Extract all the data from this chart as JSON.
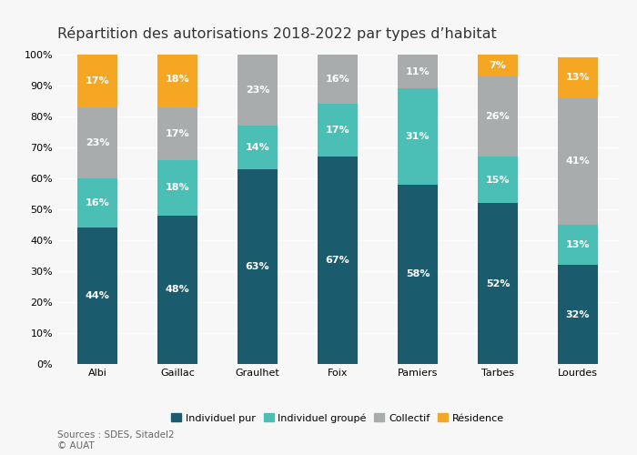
{
  "title": "Répartition des autorisations 2018-2022 par types d’habitat",
  "categories": [
    "Albi",
    "Gaillac",
    "Graulhet",
    "Foix",
    "Pamiers",
    "Tarbes",
    "Lourdes"
  ],
  "series": {
    "Individuel pur": [
      44,
      48,
      63,
      67,
      58,
      52,
      32
    ],
    "Individuel groupé": [
      16,
      18,
      14,
      17,
      31,
      15,
      13
    ],
    "Collectif": [
      23,
      17,
      23,
      16,
      11,
      26,
      41
    ],
    "Résidence": [
      17,
      18,
      0,
      0,
      0,
      7,
      13
    ]
  },
  "colors": {
    "Individuel pur": "#1a5c6e",
    "Individuel groupé": "#4bbfb5",
    "Collectif": "#a8acac",
    "Résidence": "#f5a623"
  },
  "ylabel_ticks": [
    "0%",
    "10%",
    "20%",
    "30%",
    "40%",
    "50%",
    "60%",
    "70%",
    "80%",
    "90%",
    "100%"
  ],
  "source_text": "Sources : SDES, Sitadel2\n© AUAT",
  "legend_order": [
    "Individuel pur",
    "Individuel groupé",
    "Collectif",
    "Résidence"
  ],
  "bar_width": 0.5,
  "background_color": "#f7f7f7",
  "title_fontsize": 11.5,
  "label_fontsize": 8,
  "tick_fontsize": 8,
  "legend_fontsize": 8,
  "source_fontsize": 7.5
}
